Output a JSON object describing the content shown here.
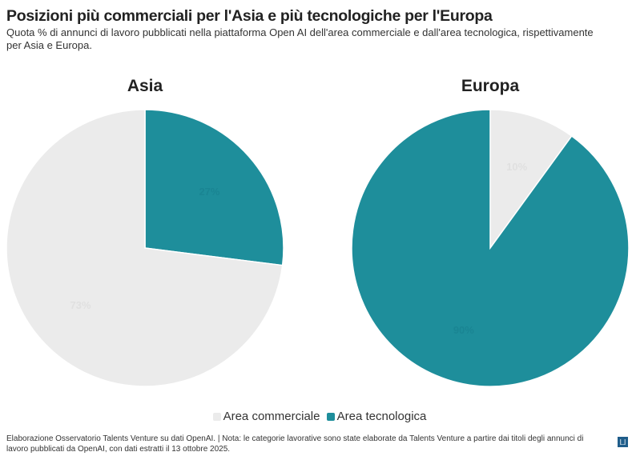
{
  "title": "Posizioni più commerciali per l'Asia e più tecnologiche per l'Europa",
  "subtitle": "Quota % di annunci di lavoro pubblicati nella piattaforma Open AI dell'area commerciale e dall'area tecnologica, rispettivamente per Asia e Europa.",
  "chart_data": [
    {
      "type": "pie",
      "title": "Asia",
      "categories": [
        "Area tecnologica",
        "Area commerciale"
      ],
      "values": [
        27,
        73
      ],
      "labels": [
        "27%",
        "73%"
      ]
    },
    {
      "type": "pie",
      "title": "Europa",
      "categories": [
        "Area commerciale",
        "Area tecnologica"
      ],
      "values": [
        10,
        90
      ],
      "labels": [
        "10%",
        "90%"
      ]
    }
  ],
  "colors": {
    "Area commerciale": "#ebebeb",
    "Area tecnologica": "#1e8e9b"
  },
  "legend": {
    "items": [
      "Area commerciale",
      "Area tecnologica"
    ],
    "placement": "bottom"
  },
  "footer": "Elaborazione Osservatorio Talents Venture su dati OpenAI. | Nota: le categorie lavorative sono state elaborate da Talents Venture a partire dai titoli degli annunci di lavoro pubblicati da OpenAI, con dati estratti il 13 ottobre 2025.",
  "logo_icon": "datawrapper-logo-icon"
}
